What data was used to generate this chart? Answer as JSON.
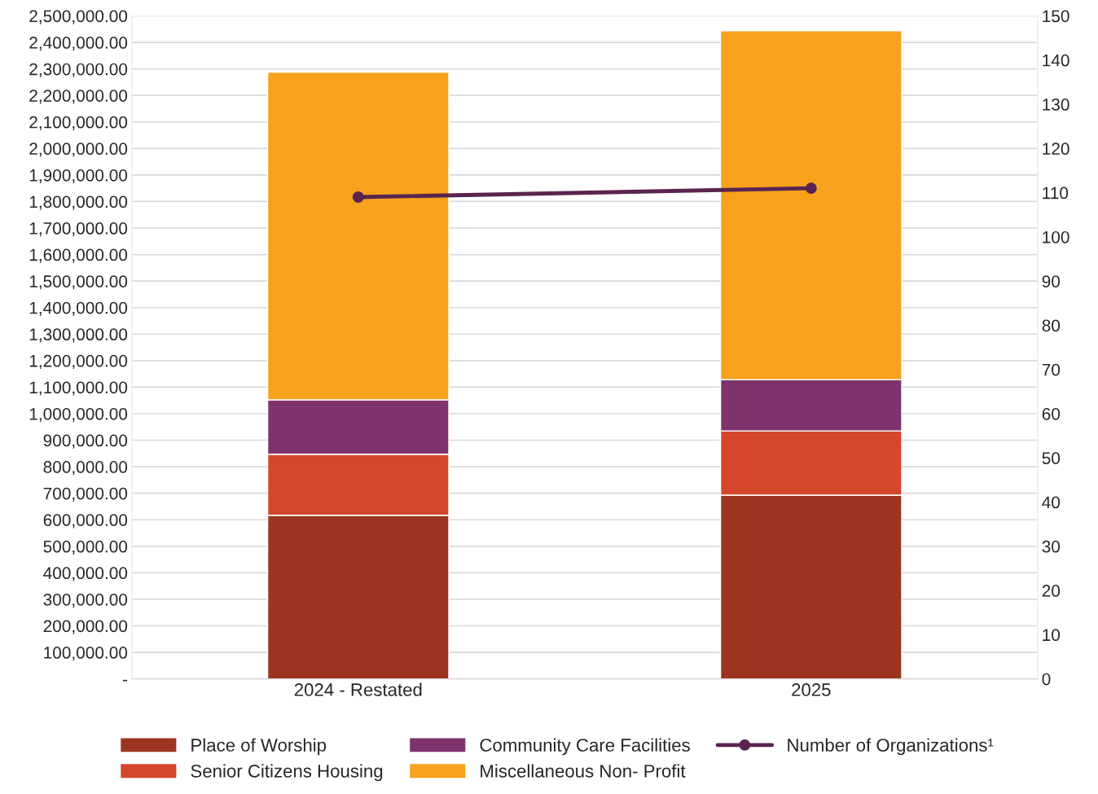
{
  "chart_data": {
    "type": "bar",
    "stacked": true,
    "categories": [
      "2024 - Restated",
      "2025"
    ],
    "series": [
      {
        "name": "Place of Worship",
        "color": "#9c3520",
        "values": [
          617000,
          693000
        ]
      },
      {
        "name": "Senior Citizens Housing",
        "color": "#d5472b",
        "values": [
          230000,
          242000
        ]
      },
      {
        "name": "Community Care Facilities",
        "color": "#7f336c",
        "values": [
          205000,
          193000
        ]
      },
      {
        "name": "Miscellaneous Non- Profit",
        "color": "#f7a11d",
        "values": [
          1236000,
          1316000
        ]
      },
      {
        "name": "Number of Organizations¹",
        "type": "line",
        "axis": "y2",
        "color": "#5a2450",
        "values": [
          109,
          111
        ],
        "marker": "circle"
      }
    ],
    "ylim": [
      0,
      2500000
    ],
    "yticks": [
      {
        "value": 0,
        "label": "-"
      },
      {
        "value": 100000,
        "label": "100,000.00"
      },
      {
        "value": 200000,
        "label": "200,000.00"
      },
      {
        "value": 300000,
        "label": "300,000.00"
      },
      {
        "value": 400000,
        "label": "400,000.00"
      },
      {
        "value": 500000,
        "label": "500,000.00"
      },
      {
        "value": 600000,
        "label": "600,000.00"
      },
      {
        "value": 700000,
        "label": "700,000.00"
      },
      {
        "value": 800000,
        "label": "800,000.00"
      },
      {
        "value": 900000,
        "label": "900,000.00"
      },
      {
        "value": 1000000,
        "label": "1,000,000.00"
      },
      {
        "value": 1100000,
        "label": "1,100,000.00"
      },
      {
        "value": 1200000,
        "label": "1,200,000.00"
      },
      {
        "value": 1300000,
        "label": "1,300,000.00"
      },
      {
        "value": 1400000,
        "label": "1,400,000.00"
      },
      {
        "value": 1500000,
        "label": "1,500,000.00"
      },
      {
        "value": 1600000,
        "label": "1,600,000.00"
      },
      {
        "value": 1700000,
        "label": "1,700,000.00"
      },
      {
        "value": 1800000,
        "label": "1,800,000.00"
      },
      {
        "value": 1900000,
        "label": "1,900,000.00"
      },
      {
        "value": 2000000,
        "label": "2,000,000.00"
      },
      {
        "value": 2100000,
        "label": "2,100,000.00"
      },
      {
        "value": 2200000,
        "label": "2,200,000.00"
      },
      {
        "value": 2300000,
        "label": "2,300,000.00"
      },
      {
        "value": 2400000,
        "label": "2,400,000.00"
      },
      {
        "value": 2500000,
        "label": "2,500,000.00"
      }
    ],
    "y2lim": [
      0,
      150
    ],
    "y2ticks": [
      0,
      10,
      20,
      30,
      40,
      50,
      60,
      70,
      80,
      90,
      100,
      110,
      120,
      130,
      140,
      150
    ],
    "grid": "y",
    "legend": "bottom"
  }
}
